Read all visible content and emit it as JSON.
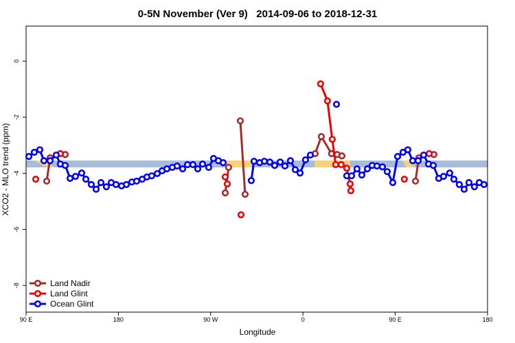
{
  "chart_data": {
    "type": "line",
    "title": "0-5N November (Ver 9)   2014-09-06 to 2018-12-31",
    "x_label": "Longitude",
    "y_label": "XCO2 - MLO trend (ppm)",
    "xlim": [
      90,
      540
    ],
    "ylim": [
      -8.95,
      1.25
    ],
    "xticks": [
      {
        "value": 90,
        "label": "90 E"
      },
      180,
      {
        "value": 270,
        "label": "90 W"
      },
      {
        "value": 360,
        "label": "0"
      },
      {
        "value": 450,
        "label": "90 E"
      },
      {
        "value": 540,
        "label": "180"
      }
    ],
    "yticks": [
      0,
      -2,
      -4,
      -6,
      -8
    ],
    "legend": "bottomleft",
    "series": [
      {
        "name": "Land Nadir",
        "color": "#a52a2a",
        "x": [
          110.1,
          113.4,
          null,
          128.2,
          null,
          284.2,
          287.5,
          null,
          298.9,
          303.6,
          null,
          371.9,
          377.9,
          387.9,
          393.3,
          398.0,
          null,
          469.7,
          473.0,
          null,
          487.7
        ],
        "values": [
          -4.28,
          -3.45,
          null,
          -3.33,
          null,
          -4.7,
          -3.79,
          null,
          -2.13,
          -4.75,
          null,
          -3.3,
          -2.69,
          -3.3,
          -3.33,
          -3.38,
          null,
          -4.28,
          -3.45,
          null,
          -3.33
        ]
      },
      {
        "name": "Land Glint",
        "color": "#ee0000",
        "x": [
          99.4,
          null,
          123.4,
          null,
          284.2,
          286.2,
          null,
          299.6,
          null,
          377.2,
          383.9,
          388.6,
          391.9,
          397.3,
          402.7,
          406.0,
          406.7,
          null,
          458.9,
          null,
          483.1
        ],
        "values": [
          -4.21,
          null,
          -3.3,
          null,
          -4.13,
          -4.38,
          null,
          -5.48,
          null,
          -0.81,
          -1.42,
          -2.79,
          -3.69,
          -3.69,
          -3.82,
          -4.38,
          -4.62,
          null,
          -4.21,
          null,
          -3.3
        ]
      },
      {
        "name": "Ocean Glint",
        "color": "#0000ee",
        "x": [
          92.7,
          98.0,
          103.4,
          107.4,
          113.4,
          119.4,
          123.4,
          128.2,
          132.9,
          138.2,
          144.2,
          148.3,
          153.6,
          158.3,
          163.0,
          168.3,
          173.0,
          177.7,
          183.1,
          187.8,
          193.1,
          197.8,
          203.2,
          207.8,
          212.5,
          217.9,
          222.6,
          227.3,
          232.6,
          237.3,
          242.7,
          247.4,
          252.7,
          257.4,
          262.1,
          268.1,
          272.8,
          277.5,
          282.2,
          null,
          309.6,
          312.3,
          317.7,
          322.4,
          327.7,
          332.4,
          337.8,
          342.4,
          347.8,
          352.5,
          357.2,
          362.5,
          367.2,
          null,
          392.7,
          null,
          402.7,
          407.4,
          412.7,
          417.4,
          422.8,
          427.5,
          432.2,
          437.5,
          442.2,
          447.6,
          452.3,
          457.6,
          462.3,
          467.0,
          472.3,
          477.7,
          482.4,
          487.1,
          492.4,
          497.1,
          503.1,
          507.2,
          512.5,
          517.2,
          521.9,
          527.2,
          531.9,
          536.6
        ],
        "values": [
          -3.4,
          -3.25,
          -3.16,
          -3.55,
          -3.55,
          -3.35,
          -3.67,
          -3.72,
          -4.18,
          -4.11,
          -3.99,
          -4.21,
          -4.4,
          -4.57,
          -4.33,
          -4.48,
          -4.33,
          -4.4,
          -4.45,
          -4.4,
          -4.31,
          -4.28,
          -4.21,
          -4.13,
          -4.09,
          -4.01,
          -3.91,
          -3.84,
          -3.79,
          -3.74,
          -3.84,
          -3.69,
          -3.69,
          -3.84,
          -3.67,
          -3.79,
          -3.47,
          -3.55,
          -3.62,
          null,
          -4.26,
          -3.57,
          -3.62,
          -3.57,
          -3.6,
          -3.72,
          -3.6,
          -3.74,
          -3.55,
          -3.87,
          -3.99,
          -3.52,
          -3.35,
          null,
          -1.54,
          null,
          -4.09,
          -4.09,
          -3.84,
          -4.06,
          -3.84,
          -3.72,
          -3.74,
          -3.77,
          -3.94,
          -4.33,
          -3.4,
          -3.25,
          -3.16,
          -3.55,
          -3.55,
          -3.35,
          -3.67,
          -3.72,
          -4.18,
          -4.11,
          -3.99,
          -4.21,
          -4.4,
          -4.57,
          -4.33,
          -4.48,
          -4.33,
          -4.4
        ]
      }
    ]
  }
}
